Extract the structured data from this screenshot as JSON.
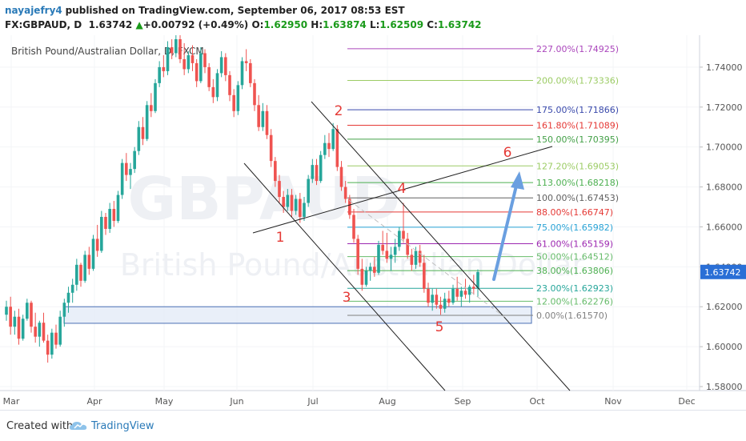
{
  "header": {
    "username": "nayajefry4",
    "published": "published on TradingView.com, September 06, 2017 08:53 EST",
    "symbol": "FX:GBPAUD, D",
    "last": "1.63742",
    "up_arrow": "▲",
    "change": "+0.00792 (+0.49%)",
    "o_label": "O:",
    "o_value": "1.62950",
    "h_label": "H:",
    "h_value": "1.63874",
    "l_label": "L:",
    "l_value": "1.62509",
    "c_label": "C:",
    "c_value": "1.63742"
  },
  "footer": {
    "created_with": "Created with",
    "brand": "TradingView"
  },
  "colors": {
    "up": "#26a69a",
    "down": "#ef5350",
    "accent": "#2a7ab8",
    "price_badge": "#2a6fd6",
    "arrow": "#6a9fe0"
  },
  "chart_data": {
    "type": "candlestick",
    "title": "British Pound/Australian Dollar, D, FXCM",
    "watermark": "GBPAUD",
    "watermark_sub": "British Pound/Australian Dollar",
    "ylim": [
      1.578,
      1.756
    ],
    "y_ticks": [
      "1.74000",
      "1.72000",
      "1.70000",
      "1.68000",
      "1.66000",
      "1.64000",
      "1.62000",
      "1.60000",
      "1.58000"
    ],
    "x_ticks": [
      "Mar",
      "Apr",
      "May",
      "Jun",
      "Jul",
      "Aug",
      "Sep",
      "Oct",
      "Nov",
      "Dec"
    ],
    "last_price": "1.63742",
    "candles": [
      [
        1.616,
        1.623,
        1.613,
        1.62
      ],
      [
        1.62,
        1.625,
        1.606,
        1.61
      ],
      [
        1.61,
        1.618,
        1.606,
        1.615
      ],
      [
        1.615,
        1.619,
        1.601,
        1.604
      ],
      [
        1.604,
        1.616,
        1.603,
        1.614
      ],
      [
        1.614,
        1.624,
        1.613,
        1.622
      ],
      [
        1.622,
        1.623,
        1.607,
        1.61
      ],
      [
        1.61,
        1.617,
        1.602,
        1.605
      ],
      [
        1.605,
        1.613,
        1.6,
        1.612
      ],
      [
        1.612,
        1.617,
        1.602,
        1.603
      ],
      [
        1.603,
        1.606,
        1.592,
        1.596
      ],
      [
        1.596,
        1.609,
        1.594,
        1.607
      ],
      [
        1.607,
        1.611,
        1.599,
        1.601
      ],
      [
        1.601,
        1.618,
        1.6,
        1.615
      ],
      [
        1.615,
        1.624,
        1.61,
        1.622
      ],
      [
        1.622,
        1.63,
        1.617,
        1.627
      ],
      [
        1.627,
        1.634,
        1.622,
        1.631
      ],
      [
        1.631,
        1.644,
        1.628,
        1.641
      ],
      [
        1.641,
        1.642,
        1.63,
        1.633
      ],
      [
        1.633,
        1.648,
        1.632,
        1.646
      ],
      [
        1.646,
        1.65,
        1.636,
        1.639
      ],
      [
        1.639,
        1.656,
        1.638,
        1.654
      ],
      [
        1.654,
        1.661,
        1.645,
        1.648
      ],
      [
        1.648,
        1.668,
        1.647,
        1.665
      ],
      [
        1.665,
        1.667,
        1.656,
        1.659
      ],
      [
        1.659,
        1.672,
        1.657,
        1.669
      ],
      [
        1.669,
        1.673,
        1.66,
        1.663
      ],
      [
        1.663,
        1.678,
        1.662,
        1.676
      ],
      [
        1.676,
        1.694,
        1.674,
        1.692
      ],
      [
        1.692,
        1.697,
        1.683,
        1.686
      ],
      [
        1.686,
        1.692,
        1.679,
        1.689
      ],
      [
        1.689,
        1.7,
        1.687,
        1.698
      ],
      [
        1.698,
        1.713,
        1.696,
        1.71
      ],
      [
        1.71,
        1.715,
        1.701,
        1.704
      ],
      [
        1.704,
        1.723,
        1.703,
        1.721
      ],
      [
        1.721,
        1.727,
        1.715,
        1.718
      ],
      [
        1.718,
        1.734,
        1.717,
        1.732
      ],
      [
        1.732,
        1.743,
        1.73,
        1.74
      ],
      [
        1.74,
        1.746,
        1.735,
        1.738
      ],
      [
        1.738,
        1.753,
        1.736,
        1.75
      ],
      [
        1.75,
        1.754,
        1.744,
        1.747
      ],
      [
        1.747,
        1.756,
        1.745,
        1.754
      ],
      [
        1.754,
        1.757,
        1.742,
        1.744
      ],
      [
        1.744,
        1.752,
        1.736,
        1.739
      ],
      [
        1.739,
        1.748,
        1.737,
        1.746
      ],
      [
        1.746,
        1.751,
        1.738,
        1.742
      ],
      [
        1.742,
        1.744,
        1.73,
        1.733
      ],
      [
        1.733,
        1.75,
        1.732,
        1.747
      ],
      [
        1.747,
        1.749,
        1.737,
        1.74
      ],
      [
        1.74,
        1.742,
        1.728,
        1.73
      ],
      [
        1.73,
        1.734,
        1.722,
        1.725
      ],
      [
        1.725,
        1.739,
        1.723,
        1.737
      ],
      [
        1.737,
        1.748,
        1.735,
        1.745
      ],
      [
        1.745,
        1.747,
        1.733,
        1.736
      ],
      [
        1.736,
        1.738,
        1.723,
        1.726
      ],
      [
        1.726,
        1.729,
        1.715,
        1.718
      ],
      [
        1.718,
        1.733,
        1.716,
        1.731
      ],
      [
        1.731,
        1.745,
        1.729,
        1.743
      ],
      [
        1.743,
        1.749,
        1.738,
        1.742
      ],
      [
        1.742,
        1.744,
        1.73,
        1.732
      ],
      [
        1.732,
        1.734,
        1.718,
        1.721
      ],
      [
        1.721,
        1.726,
        1.708,
        1.71
      ],
      [
        1.71,
        1.722,
        1.708,
        1.718
      ],
      [
        1.718,
        1.721,
        1.704,
        1.706
      ],
      [
        1.706,
        1.709,
        1.69,
        1.693
      ],
      [
        1.693,
        1.695,
        1.68,
        1.683
      ],
      [
        1.683,
        1.686,
        1.672,
        1.675
      ],
      [
        1.675,
        1.678,
        1.667,
        1.67
      ],
      [
        1.67,
        1.679,
        1.668,
        1.676
      ],
      [
        1.676,
        1.679,
        1.665,
        1.668
      ],
      [
        1.668,
        1.676,
        1.666,
        1.674
      ],
      [
        1.674,
        1.677,
        1.662,
        1.665
      ],
      [
        1.665,
        1.675,
        1.663,
        1.672
      ],
      [
        1.672,
        1.686,
        1.67,
        1.684
      ],
      [
        1.684,
        1.694,
        1.682,
        1.691
      ],
      [
        1.691,
        1.694,
        1.681,
        1.683
      ],
      [
        1.683,
        1.698,
        1.682,
        1.696
      ],
      [
        1.696,
        1.706,
        1.694,
        1.702
      ],
      [
        1.702,
        1.707,
        1.695,
        1.699
      ],
      [
        1.699,
        1.712,
        1.698,
        1.709
      ],
      [
        1.709,
        1.711,
        1.688,
        1.69
      ],
      [
        1.69,
        1.693,
        1.678,
        1.68
      ],
      [
        1.68,
        1.683,
        1.672,
        1.674
      ],
      [
        1.674,
        1.676,
        1.664,
        1.666
      ],
      [
        1.666,
        1.669,
        1.652,
        1.654
      ],
      [
        1.654,
        1.656,
        1.636,
        1.639
      ],
      [
        1.639,
        1.644,
        1.628,
        1.631
      ],
      [
        1.631,
        1.64,
        1.63,
        1.638
      ],
      [
        1.638,
        1.642,
        1.633,
        1.64
      ],
      [
        1.64,
        1.645,
        1.635,
        1.637
      ],
      [
        1.637,
        1.653,
        1.636,
        1.651
      ],
      [
        1.651,
        1.658,
        1.646,
        1.648
      ],
      [
        1.648,
        1.657,
        1.642,
        1.644
      ],
      [
        1.644,
        1.65,
        1.638,
        1.646
      ],
      [
        1.646,
        1.654,
        1.642,
        1.65
      ],
      [
        1.65,
        1.66,
        1.648,
        1.658
      ],
      [
        1.658,
        1.672,
        1.652,
        1.654
      ],
      [
        1.654,
        1.657,
        1.644,
        1.646
      ],
      [
        1.646,
        1.649,
        1.638,
        1.641
      ],
      [
        1.641,
        1.65,
        1.639,
        1.648
      ],
      [
        1.648,
        1.651,
        1.64,
        1.642
      ],
      [
        1.642,
        1.646,
        1.627,
        1.629
      ],
      [
        1.629,
        1.632,
        1.62,
        1.622
      ],
      [
        1.622,
        1.629,
        1.618,
        1.626
      ],
      [
        1.626,
        1.629,
        1.619,
        1.621
      ],
      [
        1.621,
        1.625,
        1.616,
        1.619
      ],
      [
        1.619,
        1.627,
        1.617,
        1.624
      ],
      [
        1.624,
        1.628,
        1.62,
        1.622
      ],
      [
        1.622,
        1.631,
        1.621,
        1.629
      ],
      [
        1.629,
        1.635,
        1.623,
        1.625
      ],
      [
        1.625,
        1.63,
        1.62,
        1.628
      ],
      [
        1.628,
        1.634,
        1.624,
        1.626
      ],
      [
        1.626,
        1.631,
        1.622,
        1.63
      ],
      [
        1.63,
        1.636,
        1.626,
        1.629
      ],
      [
        1.6295,
        1.6387,
        1.6251,
        1.6374
      ]
    ],
    "fibonacci": [
      {
        "label": "0.00%(1.61570)",
        "price": 1.6157,
        "color": "#808080"
      },
      {
        "label": "12.00%(1.62276)",
        "price": 1.62276,
        "color": "#66bb6a"
      },
      {
        "label": "23.00%(1.62923)",
        "price": 1.62923,
        "color": "#26a69a"
      },
      {
        "label": "38.00%(1.63806)",
        "price": 1.63806,
        "color": "#4caf50"
      },
      {
        "label": "50.00%(1.64512)",
        "price": 1.64512,
        "color": "#66bb6a"
      },
      {
        "label": "61.00%(1.65159)",
        "price": 1.65159,
        "color": "#9c27b0"
      },
      {
        "label": "75.00%(1.65982)",
        "price": 1.65982,
        "color": "#29a3d6"
      },
      {
        "label": "88.00%(1.66747)",
        "price": 1.66747,
        "color": "#e53935"
      },
      {
        "label": "100.00%(1.67453)",
        "price": 1.67453,
        "color": "#606060"
      },
      {
        "label": "113.00%(1.68218)",
        "price": 1.68218,
        "color": "#4caf50"
      },
      {
        "label": "127.20%(1.69053)",
        "price": 1.69053,
        "color": "#9ccc65"
      },
      {
        "label": "150.00%(1.70395)",
        "price": 1.70395,
        "color": "#43a047"
      },
      {
        "label": "161.80%(1.71089)",
        "price": 1.71089,
        "color": "#e53935"
      },
      {
        "label": "175.00%(1.71866)",
        "price": 1.71866,
        "color": "#3949ab"
      },
      {
        "label": "200.00%(1.73336)",
        "price": 1.73336,
        "color": "#9ccc65"
      },
      {
        "label": "227.00%(1.74925)",
        "price": 1.74925,
        "color": "#ab47bc"
      }
    ],
    "wave_labels": [
      "1",
      "2",
      "3",
      "4",
      "5",
      "6"
    ]
  }
}
